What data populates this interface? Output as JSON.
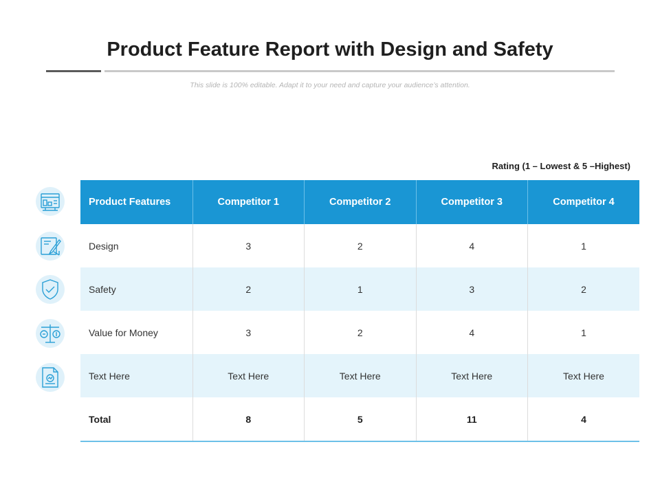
{
  "slide": {
    "title": "Product Feature Report with Design and Safety",
    "subtitle": "This slide is 100% editable. Adapt it to your need and capture your audience’s attention.",
    "rating_note": "Rating (1 – Lowest & 5 –Highest)"
  },
  "table": {
    "headers": [
      "Product Features",
      "Competitor 1",
      "Competitor 2",
      "Competitor 3",
      "Competitor 4"
    ],
    "rows": [
      {
        "feature": "Design",
        "values": [
          "3",
          "2",
          "4",
          "1"
        ]
      },
      {
        "feature": "Safety",
        "values": [
          "2",
          "1",
          "3",
          "2"
        ]
      },
      {
        "feature": "Value for Money",
        "values": [
          "3",
          "2",
          "4",
          "1"
        ]
      },
      {
        "feature": "Text Here",
        "values": [
          "Text Here",
          "Text Here",
          "Text Here",
          "Text Here"
        ]
      }
    ],
    "total": {
      "label": "Total",
      "values": [
        "8",
        "5",
        "11",
        "4"
      ]
    }
  },
  "icons": [
    "dashboard-icon",
    "design-pencil-icon",
    "shield-check-icon",
    "scale-money-icon",
    "report-document-icon"
  ],
  "colors": {
    "accent": "#1a96d4",
    "alt_row": "#e4f4fb",
    "icon_stroke": "#2a9fd6",
    "icon_bg": "#dff1fa"
  }
}
